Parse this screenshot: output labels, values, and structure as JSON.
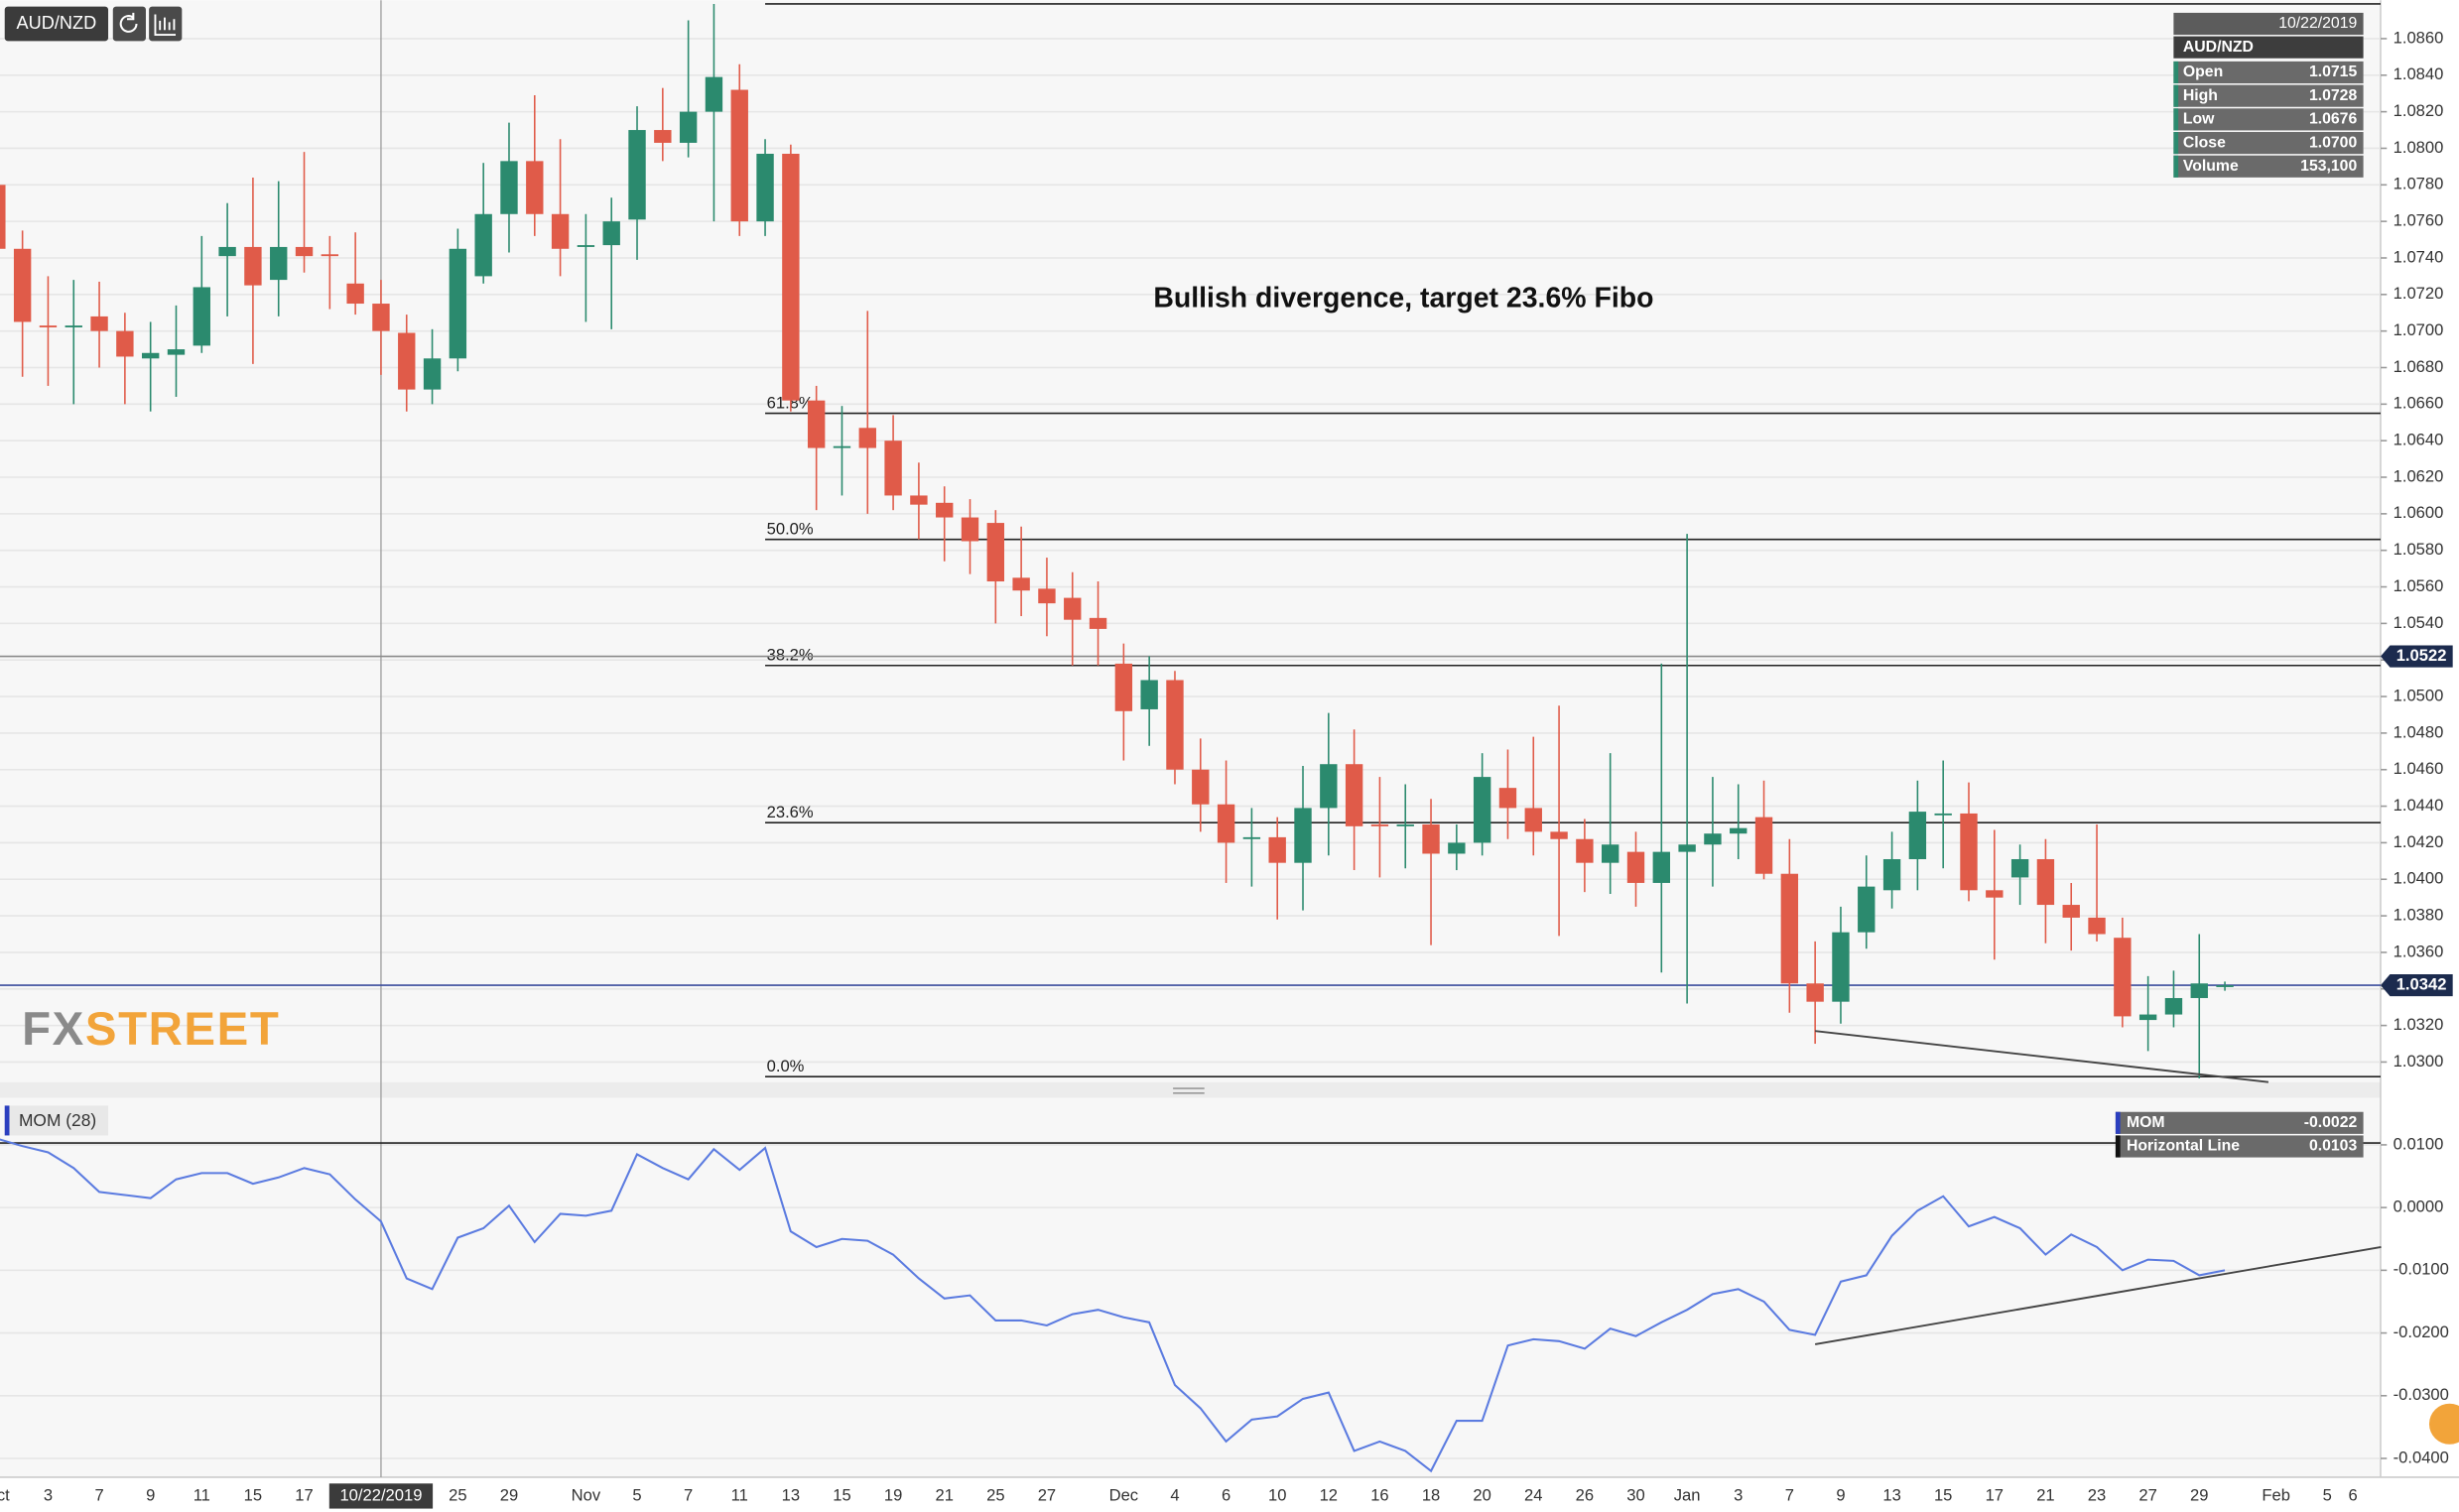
{
  "chart_data": {
    "type": "candlestick",
    "symbol": "AUD/NZD",
    "annotation": "Bullish divergence, target 23.6% Fibo",
    "logo": [
      "FX",
      "STREET"
    ],
    "categories": [
      "Oct",
      null,
      "3",
      null,
      "7",
      null,
      "9",
      null,
      "11",
      null,
      "15",
      null,
      "17",
      null,
      null,
      null,
      null,
      null,
      "25",
      null,
      "29",
      null,
      null,
      "Nov",
      null,
      "5",
      null,
      "7",
      null,
      "11",
      null,
      "13",
      null,
      "15",
      null,
      "19",
      null,
      "21",
      null,
      "25",
      null,
      "27",
      null,
      null,
      "Dec",
      null,
      "4",
      null,
      "6",
      null,
      "10",
      null,
      "12",
      null,
      "16",
      null,
      "18",
      null,
      "20",
      null,
      "24",
      null,
      "26",
      null,
      "30",
      null,
      "Jan",
      null,
      "3",
      null,
      "7",
      null,
      "9",
      null,
      "13",
      null,
      "15",
      null,
      "17",
      null,
      "21",
      null,
      "23",
      null,
      "27",
      null,
      "29",
      null,
      null,
      "Feb",
      null,
      "5",
      "6"
    ],
    "crosshair": {
      "index": 15,
      "label": "10/22/2019"
    },
    "up_color": "#2b8a6e",
    "down_color": "#e05b49",
    "open": [
      1.078,
      1.0745,
      1.0703,
      1.0702,
      1.0708,
      1.07,
      1.0685,
      1.0687,
      1.0692,
      1.0741,
      1.0746,
      1.0728,
      1.0746,
      1.0742,
      1.0726,
      1.0715,
      1.0699,
      1.0668,
      1.0685,
      1.073,
      1.0764,
      1.0793,
      1.0764,
      1.0746,
      1.0747,
      1.0761,
      1.081,
      1.0803,
      1.082,
      1.0832,
      1.076,
      1.0797,
      1.0662,
      1.0636,
      1.0647,
      1.064,
      1.061,
      1.0606,
      1.0598,
      1.0595,
      1.0565,
      1.0559,
      1.0554,
      1.0543,
      1.0518,
      1.0493,
      1.0509,
      1.046,
      1.0441,
      1.0422,
      1.0423,
      1.0409,
      1.0439,
      1.0463,
      1.043,
      1.0429,
      1.043,
      1.0414,
      1.042,
      1.045,
      1.0439,
      1.0426,
      1.0422,
      1.0409,
      1.0415,
      1.0398,
      1.0415,
      1.0419,
      1.0425,
      1.0434,
      1.0403,
      1.0343,
      1.0333,
      1.0371,
      1.0394,
      1.0411,
      1.0435,
      1.0436,
      1.0394,
      1.0401,
      1.0411,
      1.0386,
      1.0379,
      1.0368,
      1.0323,
      1.0326,
      1.0335,
      1.0341,
      null,
      null,
      null,
      null,
      null
    ],
    "high": [
      1.0785,
      1.0755,
      1.073,
      1.0728,
      1.0727,
      1.071,
      1.0705,
      1.0714,
      1.0752,
      1.077,
      1.0784,
      1.0782,
      1.0798,
      1.0752,
      1.0754,
      1.0728,
      1.0709,
      1.0701,
      1.0756,
      1.0792,
      1.0814,
      1.0829,
      1.0805,
      1.0764,
      1.0773,
      1.0823,
      1.0833,
      1.087,
      1.0879,
      1.0846,
      1.0805,
      1.0802,
      1.067,
      1.0659,
      1.0711,
      1.0654,
      1.0628,
      1.0615,
      1.0608,
      1.0602,
      1.0593,
      1.0576,
      1.0568,
      1.0563,
      1.0529,
      1.0522,
      1.0514,
      1.0477,
      1.0465,
      1.0439,
      1.0434,
      1.0462,
      1.0491,
      1.0482,
      1.0456,
      1.0452,
      1.0444,
      1.043,
      1.0469,
      1.0471,
      1.0478,
      1.0495,
      1.0433,
      1.0469,
      1.0426,
      1.0518,
      1.0589,
      1.0456,
      1.0452,
      1.0454,
      1.0422,
      1.0366,
      1.0385,
      1.0413,
      1.0426,
      1.0454,
      1.0465,
      1.0453,
      1.0427,
      1.0419,
      1.0422,
      1.0398,
      1.043,
      1.0379,
      1.0347,
      1.035,
      1.037,
      1.0344,
      null,
      null,
      null,
      null,
      null
    ],
    "low": [
      1.0735,
      1.0675,
      1.067,
      1.066,
      1.068,
      1.066,
      1.0656,
      1.0664,
      1.0688,
      1.0708,
      1.0682,
      1.0708,
      1.0732,
      1.0712,
      1.0709,
      1.0676,
      1.0656,
      1.066,
      1.0678,
      1.0726,
      1.0743,
      1.0752,
      1.073,
      1.0705,
      1.0701,
      1.0739,
      1.0793,
      1.0795,
      1.076,
      1.0752,
      1.0752,
      1.0656,
      1.0602,
      1.061,
      1.06,
      1.0602,
      1.0586,
      1.0574,
      1.0567,
      1.054,
      1.0544,
      1.0533,
      1.0517,
      1.0517,
      1.0465,
      1.0473,
      1.0452,
      1.0426,
      1.0398,
      1.0396,
      1.0378,
      1.0383,
      1.0413,
      1.0405,
      1.0401,
      1.0406,
      1.0364,
      1.0405,
      1.0413,
      1.0422,
      1.0413,
      1.0369,
      1.0393,
      1.0392,
      1.0385,
      1.0349,
      1.0332,
      1.0396,
      1.0411,
      1.04,
      1.0327,
      1.031,
      1.0321,
      1.0362,
      1.0384,
      1.0394,
      1.0406,
      1.0388,
      1.0356,
      1.0386,
      1.0365,
      1.0361,
      1.0366,
      1.0319,
      1.0306,
      1.0319,
      1.0291,
      1.0339,
      null,
      null,
      null,
      null,
      null
    ],
    "close": [
      1.0745,
      1.0705,
      1.0702,
      1.0703,
      1.07,
      1.0686,
      1.0688,
      1.069,
      1.0724,
      1.0746,
      1.0725,
      1.0746,
      1.0741,
      1.0741,
      1.0715,
      1.07,
      1.0668,
      1.0685,
      1.0745,
      1.0764,
      1.0793,
      1.0764,
      1.0745,
      1.0747,
      1.076,
      1.081,
      1.0803,
      1.082,
      1.0839,
      1.076,
      1.0797,
      1.0662,
      1.0636,
      1.0637,
      1.0636,
      1.061,
      1.0605,
      1.0598,
      1.0585,
      1.0563,
      1.0558,
      1.0551,
      1.0542,
      1.0537,
      1.0492,
      1.0509,
      1.046,
      1.0441,
      1.042,
      1.0423,
      1.0409,
      1.0439,
      1.0463,
      1.0429,
      1.0429,
      1.043,
      1.0414,
      1.042,
      1.0456,
      1.0439,
      1.0426,
      1.0422,
      1.0409,
      1.0419,
      1.0398,
      1.0415,
      1.0419,
      1.0425,
      1.0428,
      1.0403,
      1.0343,
      1.0333,
      1.0371,
      1.0396,
      1.0411,
      1.0437,
      1.0436,
      1.0394,
      1.039,
      1.0411,
      1.0386,
      1.0379,
      1.037,
      1.0325,
      1.0326,
      1.0335,
      1.0343,
      1.0342,
      null,
      null,
      null,
      null,
      null
    ],
    "ylim": [
      1.0289,
      1.0881
    ],
    "yticks": [
      {
        "value": 1.03,
        "label": "1.0300"
      },
      {
        "value": 1.032,
        "label": "1.0320"
      },
      {
        "value": 1.034,
        "label": "1.0340"
      },
      {
        "value": 1.036,
        "label": "1.0360"
      },
      {
        "value": 1.038,
        "label": "1.0380"
      },
      {
        "value": 1.04,
        "label": "1.0400"
      },
      {
        "value": 1.042,
        "label": "1.0420"
      },
      {
        "value": 1.044,
        "label": "1.0440"
      },
      {
        "value": 1.046,
        "label": "1.0460"
      },
      {
        "value": 1.048,
        "label": "1.0480"
      },
      {
        "value": 1.05,
        "label": "1.0500"
      },
      {
        "value": 1.052,
        "label": "1.0520"
      },
      {
        "value": 1.054,
        "label": "1.0540"
      },
      {
        "value": 1.056,
        "label": "1.0560"
      },
      {
        "value": 1.058,
        "label": "1.0580"
      },
      {
        "value": 1.06,
        "label": "1.0600"
      },
      {
        "value": 1.062,
        "label": "1.0620"
      },
      {
        "value": 1.064,
        "label": "1.0640"
      },
      {
        "value": 1.066,
        "label": "1.0660"
      },
      {
        "value": 1.068,
        "label": "1.0680"
      },
      {
        "value": 1.07,
        "label": "1.0700"
      },
      {
        "value": 1.072,
        "label": "1.0720"
      },
      {
        "value": 1.074,
        "label": "1.0740"
      },
      {
        "value": 1.076,
        "label": "1.0760"
      },
      {
        "value": 1.078,
        "label": "1.0780"
      },
      {
        "value": 1.08,
        "label": "1.0800"
      },
      {
        "value": 1.082,
        "label": "1.0820"
      },
      {
        "value": 1.084,
        "label": "1.0840"
      },
      {
        "value": 1.086,
        "label": "1.0860"
      }
    ],
    "grid": true,
    "price_lines": [
      {
        "value": 1.0522,
        "label": "1.0522",
        "color": "#8a8a8a"
      },
      {
        "value": 1.0342,
        "label": "1.0342",
        "color": "#3b4c9c"
      }
    ],
    "fibonacci": {
      "start": 30,
      "top": 1.0879,
      "levels": [
        {
          "label": "61.8%",
          "price": 1.0655
        },
        {
          "label": "50.0%",
          "price": 1.0586
        },
        {
          "label": "38.2%",
          "price": 1.0517
        },
        {
          "label": "23.6%",
          "price": 1.0431
        },
        {
          "label": "0.0%",
          "price": 1.0292
        }
      ]
    },
    "trendline": {
      "from": [
        71,
        1.0317
      ],
      "to": [
        88.7,
        1.0289
      ]
    },
    "readout": {
      "rows": [
        {
          "name": "Open",
          "value": "1.0715"
        },
        {
          "name": "High",
          "value": "1.0728"
        },
        {
          "name": "Low",
          "value": "1.0676"
        },
        {
          "name": "Close",
          "value": "1.0700"
        },
        {
          "name": "Volume",
          "value": "153,100"
        }
      ]
    },
    "indicator": {
      "title": "MOM (28)",
      "color": "#5b7be0",
      "values": [
        0.011,
        0.0098,
        0.0088,
        0.0063,
        0.0025,
        0.002,
        0.0015,
        0.0045,
        0.0055,
        0.0055,
        0.0038,
        0.0048,
        0.0063,
        0.0053,
        0.0013,
        -0.0022,
        -0.0113,
        -0.013,
        -0.0048,
        -0.0033,
        0.0003,
        -0.0055,
        -0.001,
        -0.0013,
        -0.0005,
        0.0085,
        0.0063,
        0.0045,
        0.0093,
        0.006,
        0.0095,
        -0.0038,
        -0.0063,
        -0.005,
        -0.0053,
        -0.0075,
        -0.0113,
        -0.0145,
        -0.014,
        -0.018,
        -0.018,
        -0.0188,
        -0.017,
        -0.0163,
        -0.0175,
        -0.0183,
        -0.0283,
        -0.032,
        -0.0373,
        -0.0338,
        -0.0333,
        -0.0305,
        -0.0295,
        -0.0388,
        -0.0373,
        -0.0388,
        -0.042,
        -0.034,
        -0.034,
        -0.022,
        -0.021,
        -0.0213,
        -0.0225,
        -0.0193,
        -0.0205,
        -0.0183,
        -0.0163,
        -0.0138,
        -0.013,
        -0.015,
        -0.0195,
        -0.0203,
        -0.0118,
        -0.0108,
        -0.0045,
        -0.0005,
        0.0018,
        -0.003,
        -0.0015,
        -0.0033,
        -0.0075,
        -0.0043,
        -0.0063,
        -0.01,
        -0.0083,
        -0.0085,
        -0.0108,
        -0.01,
        null,
        null,
        null,
        null,
        null
      ],
      "ylim": [
        -0.043,
        0.0175
      ],
      "yticks": [
        {
          "value": 0.01,
          "label": "0.0100"
        },
        {
          "value": 0,
          "label": "0.0000"
        },
        {
          "value": -0.01,
          "label": "-0.0100"
        },
        {
          "value": -0.02,
          "label": "-0.0200"
        },
        {
          "value": -0.03,
          "label": "-0.0300"
        },
        {
          "value": -0.04,
          "label": "-0.0400"
        }
      ],
      "hline": 0.0103,
      "trendline": {
        "from": [
          71,
          -0.0218
        ],
        "to": [
          93.1,
          -0.0063
        ]
      },
      "readout": [
        {
          "name": "MOM",
          "value": "-0.0022"
        },
        {
          "name": "Horizontal Line",
          "value": "0.0103"
        }
      ]
    }
  }
}
